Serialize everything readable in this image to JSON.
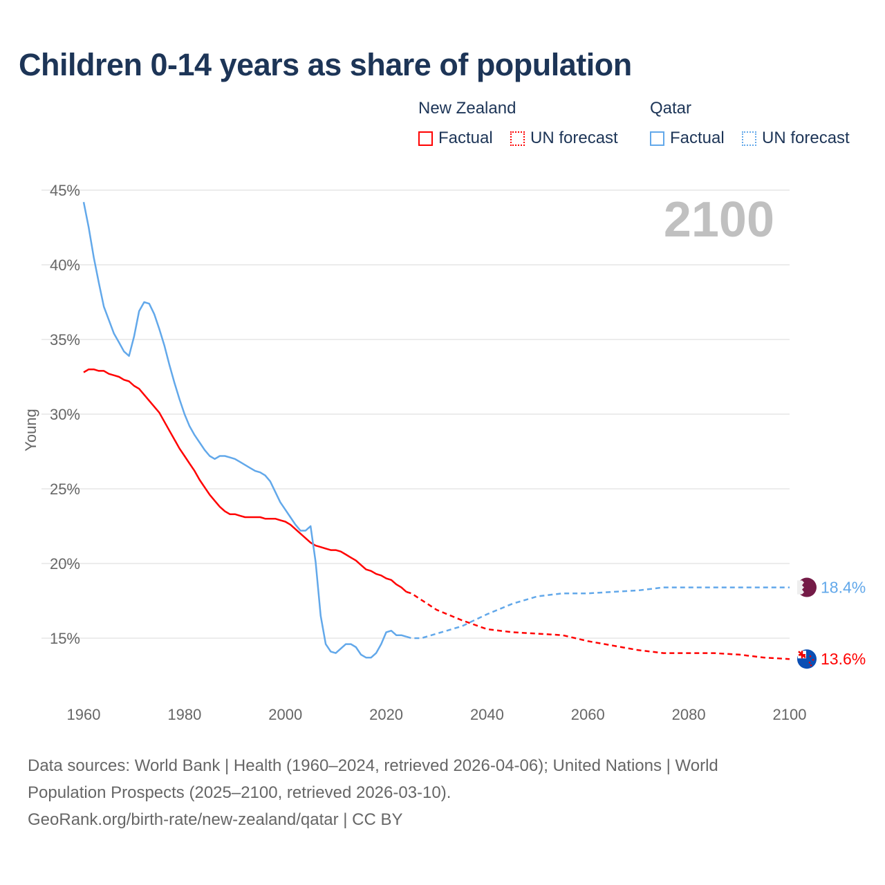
{
  "title": "Children 0-14 years as share of population",
  "legend": {
    "groups": [
      {
        "name": "New Zealand",
        "items": [
          {
            "label": "Factual",
            "style": "solid"
          },
          {
            "label": "UN forecast",
            "style": "dotted"
          }
        ],
        "color": "#ff0000"
      },
      {
        "name": "Qatar",
        "items": [
          {
            "label": "Factual",
            "style": "solid"
          },
          {
            "label": "UN forecast",
            "style": "dotted"
          }
        ],
        "color": "#62a8ea"
      }
    ]
  },
  "chart_data": {
    "type": "line",
    "title": "Children 0-14 years as share of population",
    "xlabel": "",
    "ylabel": "Young",
    "xlim": [
      1960,
      2100
    ],
    "ylim": [
      12,
      45
    ],
    "x_ticks": [
      "1960",
      "1980",
      "2000",
      "2020",
      "2040",
      "2060",
      "2080",
      "2100"
    ],
    "y_ticks": [
      "15%",
      "20%",
      "25%",
      "30%",
      "35%",
      "40%",
      "45%"
    ],
    "y_tick_values": [
      15,
      20,
      25,
      30,
      35,
      40,
      45
    ],
    "grid": true,
    "year_overlay": "2100",
    "series": [
      {
        "name": "New Zealand",
        "color": "#ff0000",
        "end_label": "13.6%",
        "factual": {
          "x": [
            1960,
            1961,
            1962,
            1963,
            1964,
            1965,
            1966,
            1967,
            1968,
            1969,
            1970,
            1971,
            1972,
            1973,
            1974,
            1975,
            1976,
            1977,
            1978,
            1979,
            1980,
            1981,
            1982,
            1983,
            1984,
            1985,
            1986,
            1987,
            1988,
            1989,
            1990,
            1991,
            1992,
            1993,
            1994,
            1995,
            1996,
            1997,
            1998,
            1999,
            2000,
            2001,
            2002,
            2003,
            2004,
            2005,
            2006,
            2007,
            2008,
            2009,
            2010,
            2011,
            2012,
            2013,
            2014,
            2015,
            2016,
            2017,
            2018,
            2019,
            2020,
            2021,
            2022,
            2023,
            2024
          ],
          "y": [
            32.8,
            33.0,
            33.0,
            32.9,
            32.9,
            32.7,
            32.6,
            32.5,
            32.3,
            32.2,
            31.9,
            31.7,
            31.3,
            30.9,
            30.5,
            30.1,
            29.5,
            28.9,
            28.3,
            27.7,
            27.2,
            26.7,
            26.2,
            25.6,
            25.1,
            24.6,
            24.2,
            23.8,
            23.5,
            23.3,
            23.3,
            23.2,
            23.1,
            23.1,
            23.1,
            23.1,
            23.0,
            23.0,
            23.0,
            22.9,
            22.8,
            22.6,
            22.3,
            22.0,
            21.7,
            21.4,
            21.2,
            21.1,
            21.0,
            20.9,
            20.9,
            20.8,
            20.6,
            20.4,
            20.2,
            19.9,
            19.6,
            19.5,
            19.3,
            19.2,
            19.0,
            18.9,
            18.6,
            18.4,
            18.1
          ]
        },
        "forecast": {
          "x": [
            2024,
            2025,
            2030,
            2035,
            2040,
            2045,
            2050,
            2055,
            2060,
            2065,
            2070,
            2075,
            2080,
            2085,
            2090,
            2095,
            2100
          ],
          "y": [
            18.1,
            18.0,
            16.9,
            16.2,
            15.6,
            15.4,
            15.3,
            15.2,
            14.8,
            14.5,
            14.2,
            14.0,
            14.0,
            14.0,
            13.9,
            13.7,
            13.6
          ]
        }
      },
      {
        "name": "Qatar",
        "color": "#62a8ea",
        "end_label": "18.4%",
        "factual": {
          "x": [
            1960,
            1961,
            1962,
            1963,
            1964,
            1965,
            1966,
            1967,
            1968,
            1969,
            1970,
            1971,
            1972,
            1973,
            1974,
            1975,
            1976,
            1977,
            1978,
            1979,
            1980,
            1981,
            1982,
            1983,
            1984,
            1985,
            1986,
            1987,
            1988,
            1989,
            1990,
            1991,
            1992,
            1993,
            1994,
            1995,
            1996,
            1997,
            1998,
            1999,
            2000,
            2001,
            2002,
            2003,
            2004,
            2005,
            2006,
            2007,
            2008,
            2009,
            2010,
            2011,
            2012,
            2013,
            2014,
            2015,
            2016,
            2017,
            2018,
            2019,
            2020,
            2021,
            2022,
            2023,
            2024
          ],
          "y": [
            44.2,
            42.5,
            40.5,
            38.8,
            37.2,
            36.3,
            35.4,
            34.8,
            34.2,
            33.9,
            35.2,
            36.9,
            37.5,
            37.4,
            36.7,
            35.7,
            34.6,
            33.3,
            32.1,
            31.0,
            30.0,
            29.2,
            28.6,
            28.1,
            27.6,
            27.2,
            27.0,
            27.2,
            27.2,
            27.1,
            27.0,
            26.8,
            26.6,
            26.4,
            26.2,
            26.1,
            25.9,
            25.5,
            24.8,
            24.1,
            23.6,
            23.1,
            22.6,
            22.2,
            22.2,
            22.5,
            20.1,
            16.5,
            14.6,
            14.1,
            14.0,
            14.3,
            14.6,
            14.6,
            14.4,
            13.9,
            13.7,
            13.7,
            14.0,
            14.6,
            15.4,
            15.5,
            15.2,
            15.2,
            15.1
          ]
        },
        "forecast": {
          "x": [
            2024,
            2025,
            2027,
            2030,
            2035,
            2040,
            2045,
            2050,
            2055,
            2060,
            2065,
            2070,
            2075,
            2080,
            2090,
            2100
          ],
          "y": [
            15.1,
            15.0,
            15.0,
            15.3,
            15.8,
            16.6,
            17.3,
            17.8,
            18.0,
            18.0,
            18.1,
            18.2,
            18.4,
            18.4,
            18.4,
            18.4
          ]
        }
      }
    ]
  },
  "footer": {
    "line1": "Data sources: World Bank | Health (1960–2024, retrieved 2026-04-06); United Nations | World",
    "line2": "Population Prospects (2025–2100, retrieved 2026-03-10).",
    "line3": "GeoRank.org/birth-rate/new-zealand/qatar | CC BY"
  }
}
